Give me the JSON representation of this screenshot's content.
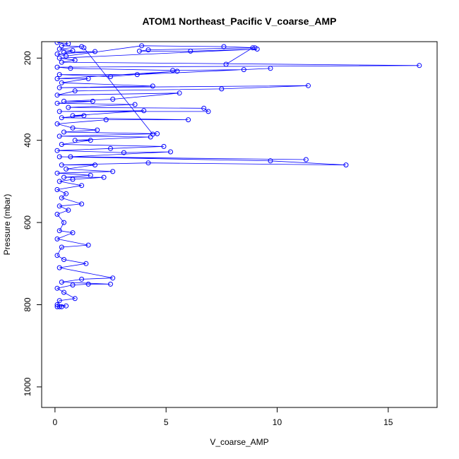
{
  "chart_data": {
    "type": "line",
    "title": "ATOM1 Northeast_Pacific V_coarse_AMP",
    "xlabel": "V_coarse_AMP",
    "ylabel": "Pressure (mbar)",
    "xlim": [
      -0.6,
      17.2
    ],
    "ylim": [
      1050,
      160
    ],
    "y_reversed": true,
    "xticks": [
      0,
      5,
      10,
      15
    ],
    "yticks": [
      200,
      400,
      600,
      800,
      1000
    ],
    "marker": "open-circle",
    "color": "#0000ff",
    "series": [
      {
        "points": [
          [
            0.1,
            162
          ],
          [
            0.6,
            165
          ],
          [
            0.3,
            170
          ],
          [
            1.2,
            172
          ],
          [
            0.2,
            178
          ],
          [
            0.8,
            182
          ],
          [
            0.4,
            186
          ],
          [
            1.8,
            184
          ],
          [
            0.1,
            190
          ],
          [
            0.5,
            195
          ],
          [
            3.9,
            170
          ],
          [
            7.6,
            172
          ],
          [
            9.0,
            175
          ],
          [
            4.2,
            180
          ],
          [
            3.8,
            183
          ],
          [
            6.1,
            183
          ],
          [
            9.1,
            178
          ],
          [
            0.2,
            200
          ],
          [
            0.9,
            205
          ],
          [
            0.3,
            210
          ],
          [
            16.4,
            218
          ],
          [
            0.1,
            222
          ],
          [
            0.7,
            225
          ],
          [
            5.3,
            230
          ],
          [
            8.5,
            228
          ],
          [
            9.7,
            225
          ],
          [
            3.7,
            240
          ],
          [
            0.2,
            240
          ],
          [
            2.5,
            245
          ],
          [
            5.5,
            232
          ],
          [
            0.1,
            250
          ],
          [
            1.5,
            250
          ],
          [
            0.3,
            260
          ],
          [
            4.4,
            268
          ],
          [
            0.2,
            272
          ],
          [
            11.4,
            267
          ],
          [
            7.5,
            275
          ],
          [
            0.9,
            280
          ],
          [
            0.1,
            290
          ],
          [
            5.6,
            285
          ],
          [
            2.6,
            300
          ],
          [
            0.4,
            305
          ],
          [
            1.7,
            305
          ],
          [
            0.1,
            310
          ],
          [
            3.6,
            313
          ],
          [
            0.6,
            320
          ],
          [
            6.7,
            322
          ],
          [
            6.9,
            330
          ],
          [
            0.2,
            330
          ],
          [
            4.0,
            328
          ],
          [
            0.8,
            340
          ],
          [
            1.3,
            340
          ],
          [
            0.3,
            345
          ],
          [
            6.0,
            350
          ],
          [
            2.3,
            350
          ],
          [
            0.1,
            360
          ],
          [
            0.8,
            370
          ],
          [
            1.9,
            375
          ],
          [
            0.4,
            380
          ],
          [
            4.6,
            384
          ],
          [
            0.2,
            390
          ],
          [
            4.3,
            392
          ],
          [
            0.9,
            400
          ],
          [
            1.6,
            400
          ],
          [
            0.3,
            410
          ],
          [
            4.9,
            415
          ],
          [
            2.5,
            420
          ],
          [
            0.1,
            425
          ],
          [
            3.1,
            430
          ],
          [
            5.2,
            428
          ],
          [
            0.7,
            440
          ],
          [
            11.3,
            447
          ],
          [
            0.2,
            440
          ],
          [
            9.7,
            450
          ],
          [
            13.1,
            460
          ],
          [
            4.2,
            455
          ],
          [
            0.3,
            460
          ],
          [
            1.8,
            460
          ],
          [
            0.5,
            470
          ],
          [
            2.6,
            476
          ],
          [
            0.1,
            480
          ],
          [
            1.6,
            485
          ],
          [
            0.4,
            490
          ],
          [
            2.2,
            490
          ],
          [
            0.8,
            495
          ],
          [
            0.2,
            500
          ],
          [
            1.2,
            510
          ],
          [
            0.1,
            520
          ],
          [
            0.5,
            530
          ],
          [
            0.3,
            540
          ],
          [
            1.2,
            555
          ],
          [
            0.2,
            560
          ],
          [
            0.6,
            570
          ],
          [
            0.1,
            580
          ],
          [
            0.4,
            600
          ],
          [
            0.2,
            620
          ],
          [
            0.8,
            625
          ],
          [
            0.1,
            640
          ],
          [
            1.5,
            655
          ],
          [
            0.3,
            660
          ],
          [
            0.1,
            680
          ],
          [
            0.4,
            690
          ],
          [
            1.4,
            700
          ],
          [
            0.2,
            710
          ],
          [
            2.6,
            735
          ],
          [
            1.2,
            738
          ],
          [
            0.3,
            745
          ],
          [
            2.5,
            750
          ],
          [
            1.5,
            750
          ],
          [
            0.8,
            752
          ],
          [
            0.1,
            760
          ],
          [
            0.4,
            770
          ],
          [
            0.9,
            785
          ],
          [
            0.2,
            790
          ],
          [
            0.1,
            800
          ],
          [
            0.5,
            803
          ],
          [
            0.2,
            805
          ],
          [
            0.3,
            805
          ],
          [
            0.1,
            805
          ]
        ]
      },
      {
        "points": [
          [
            4.4,
            385
          ],
          [
            1.3,
            175
          ]
        ]
      },
      {
        "points": [
          [
            7.7,
            215
          ],
          [
            8.9,
            175
          ]
        ]
      }
    ]
  }
}
